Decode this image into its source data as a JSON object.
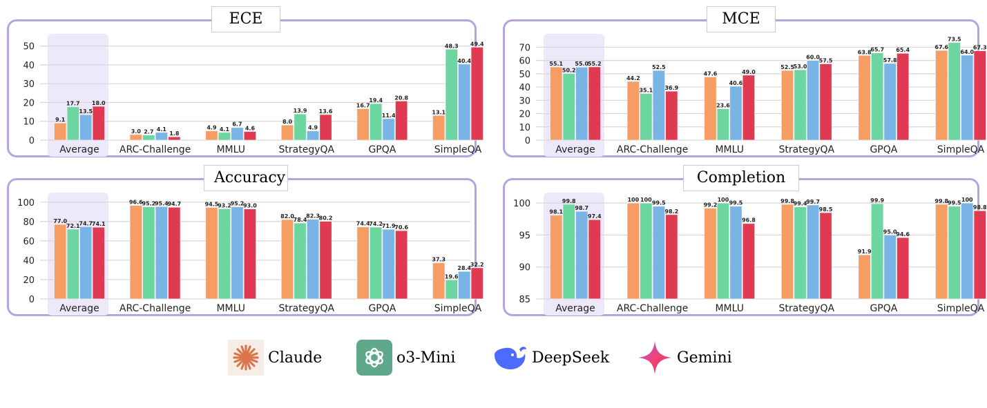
{
  "colors": {
    "Claude": "#F59D62",
    "o3-Mini": "#6DD5A0",
    "DeepSeek": "#78B4E6",
    "Gemini": "#E03A52",
    "highlight": "#EEE9FA",
    "border": "#B7A3E0"
  },
  "legend": [
    {
      "label": "Claude",
      "icon": "claude-asterisk-icon"
    },
    {
      "label": "o3-Mini",
      "icon": "openai-knot-icon"
    },
    {
      "label": "DeepSeek",
      "icon": "deepseek-whale-icon"
    },
    {
      "label": "Gemini",
      "icon": "gemini-sparkle-icon"
    }
  ],
  "chart_data": [
    {
      "type": "bar",
      "title": "ECE",
      "categories": [
        "Average",
        "ARC-Challenge",
        "MMLU",
        "StrategyQA",
        "GPQA",
        "SimpleQA"
      ],
      "ylim": [
        0,
        55
      ],
      "yticks": [
        0,
        10,
        20,
        30,
        40,
        50
      ],
      "grid": true,
      "labels": "1dp",
      "series": [
        {
          "name": "Claude",
          "values": [
            9.1,
            3.0,
            4.9,
            8.0,
            16.7,
            13.1
          ]
        },
        {
          "name": "o3-Mini",
          "values": [
            17.7,
            2.7,
            4.1,
            13.9,
            19.4,
            48.3
          ]
        },
        {
          "name": "DeepSeek",
          "values": [
            13.5,
            4.1,
            6.7,
            4.9,
            11.4,
            40.4
          ]
        },
        {
          "name": "Gemini",
          "values": [
            18.0,
            1.8,
            4.6,
            13.6,
            20.8,
            49.4
          ]
        }
      ]
    },
    {
      "type": "bar",
      "title": "MCE",
      "categories": [
        "Average",
        "ARC-Challenge",
        "MMLU",
        "StrategyQA",
        "GPQA",
        "SimpleQA"
      ],
      "ylim": [
        0,
        78
      ],
      "yticks": [
        0,
        10,
        20,
        30,
        40,
        50,
        60,
        70
      ],
      "grid": true,
      "labels": "1dp",
      "series": [
        {
          "name": "Claude",
          "values": [
            55.1,
            44.2,
            47.6,
            52.5,
            63.8,
            67.6
          ]
        },
        {
          "name": "o3-Mini",
          "values": [
            50.2,
            35.1,
            23.6,
            53.0,
            65.7,
            73.5
          ]
        },
        {
          "name": "DeepSeek",
          "values": [
            55.0,
            52.5,
            40.6,
            60.0,
            57.8,
            64.0
          ]
        },
        {
          "name": "Gemini",
          "values": [
            55.2,
            36.9,
            49.0,
            57.5,
            65.4,
            67.3
          ]
        }
      ]
    },
    {
      "type": "bar",
      "title": "Accuracy",
      "categories": [
        "Average",
        "ARC-Challenge",
        "MMLU",
        "StrategyQA",
        "GPQA",
        "SimpleQA"
      ],
      "ylim": [
        0,
        107
      ],
      "yticks": [
        0,
        20,
        40,
        60,
        80,
        100
      ],
      "grid": true,
      "labels": "1dp",
      "series": [
        {
          "name": "Claude",
          "values": [
            77.0,
            96.6,
            94.5,
            82.0,
            74.4,
            37.3
          ]
        },
        {
          "name": "o3-Mini",
          "values": [
            72.1,
            95.2,
            93.2,
            78.4,
            74.2,
            19.6
          ]
        },
        {
          "name": "DeepSeek",
          "values": [
            74.7,
            95.4,
            95.2,
            82.3,
            71.9,
            28.4
          ]
        },
        {
          "name": "Gemini",
          "values": [
            74.1,
            94.7,
            93.0,
            80.2,
            70.6,
            32.2
          ]
        }
      ]
    },
    {
      "type": "bar",
      "title": "Completion",
      "categories": [
        "Average",
        "ARC-Challenge",
        "MMLU",
        "StrategyQA",
        "GPQA",
        "SimpleQA"
      ],
      "ylim": [
        85,
        101.2
      ],
      "yticks": [
        85,
        90,
        95,
        100
      ],
      "grid": true,
      "labels": "auto",
      "series": [
        {
          "name": "Claude",
          "values": [
            98.1,
            100,
            99.2,
            99.8,
            91.9,
            99.8
          ]
        },
        {
          "name": "o3-Mini",
          "values": [
            99.8,
            100,
            100,
            99.4,
            99.9,
            99.5
          ]
        },
        {
          "name": "DeepSeek",
          "values": [
            98.7,
            99.5,
            99.5,
            99.7,
            95.0,
            100
          ]
        },
        {
          "name": "Gemini",
          "values": [
            97.4,
            98.2,
            96.8,
            98.5,
            94.6,
            98.8
          ]
        }
      ]
    }
  ]
}
